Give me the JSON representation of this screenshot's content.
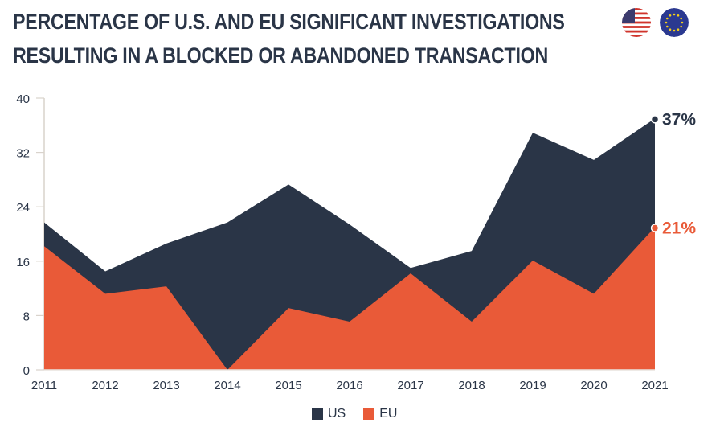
{
  "chart_data": {
    "type": "area",
    "title": "PERCENTAGE OF U.S. AND EU SIGNIFICANT INVESTIGATIONS",
    "subtitle": "RESULTING IN A BLOCKED OR ABANDONED TRANSACTION",
    "xlabel": "",
    "ylabel": "",
    "categories": [
      "2011",
      "2012",
      "2013",
      "2014",
      "2015",
      "2016",
      "2017",
      "2018",
      "2019",
      "2020",
      "2021"
    ],
    "ylim": [
      0,
      40
    ],
    "yticks": [
      "0",
      "8",
      "16",
      "24",
      "32",
      "40"
    ],
    "series": [
      {
        "name": "US",
        "color": "#2a3547",
        "values": [
          21.7,
          14.5,
          18.6,
          21.7,
          27.3,
          21.4,
          15.0,
          17.5,
          34.9,
          30.9,
          37
        ]
      },
      {
        "name": "EU",
        "color": "#e95a38",
        "values": [
          18.2,
          11.2,
          12.3,
          0,
          9.1,
          7.1,
          14.2,
          7.1,
          16.1,
          11.2,
          21
        ]
      }
    ],
    "annotations": [
      {
        "series": "US",
        "category": "2021",
        "text": "37%"
      },
      {
        "series": "EU",
        "category": "2021",
        "text": "21%"
      }
    ],
    "legend": "bottom-center",
    "grid": false
  },
  "flags": [
    {
      "icon": "us-flag-icon"
    },
    {
      "icon": "eu-flag-icon"
    }
  ],
  "legend": [
    {
      "label": "US",
      "color": "#2a3547"
    },
    {
      "label": "EU",
      "color": "#e95a38"
    }
  ]
}
